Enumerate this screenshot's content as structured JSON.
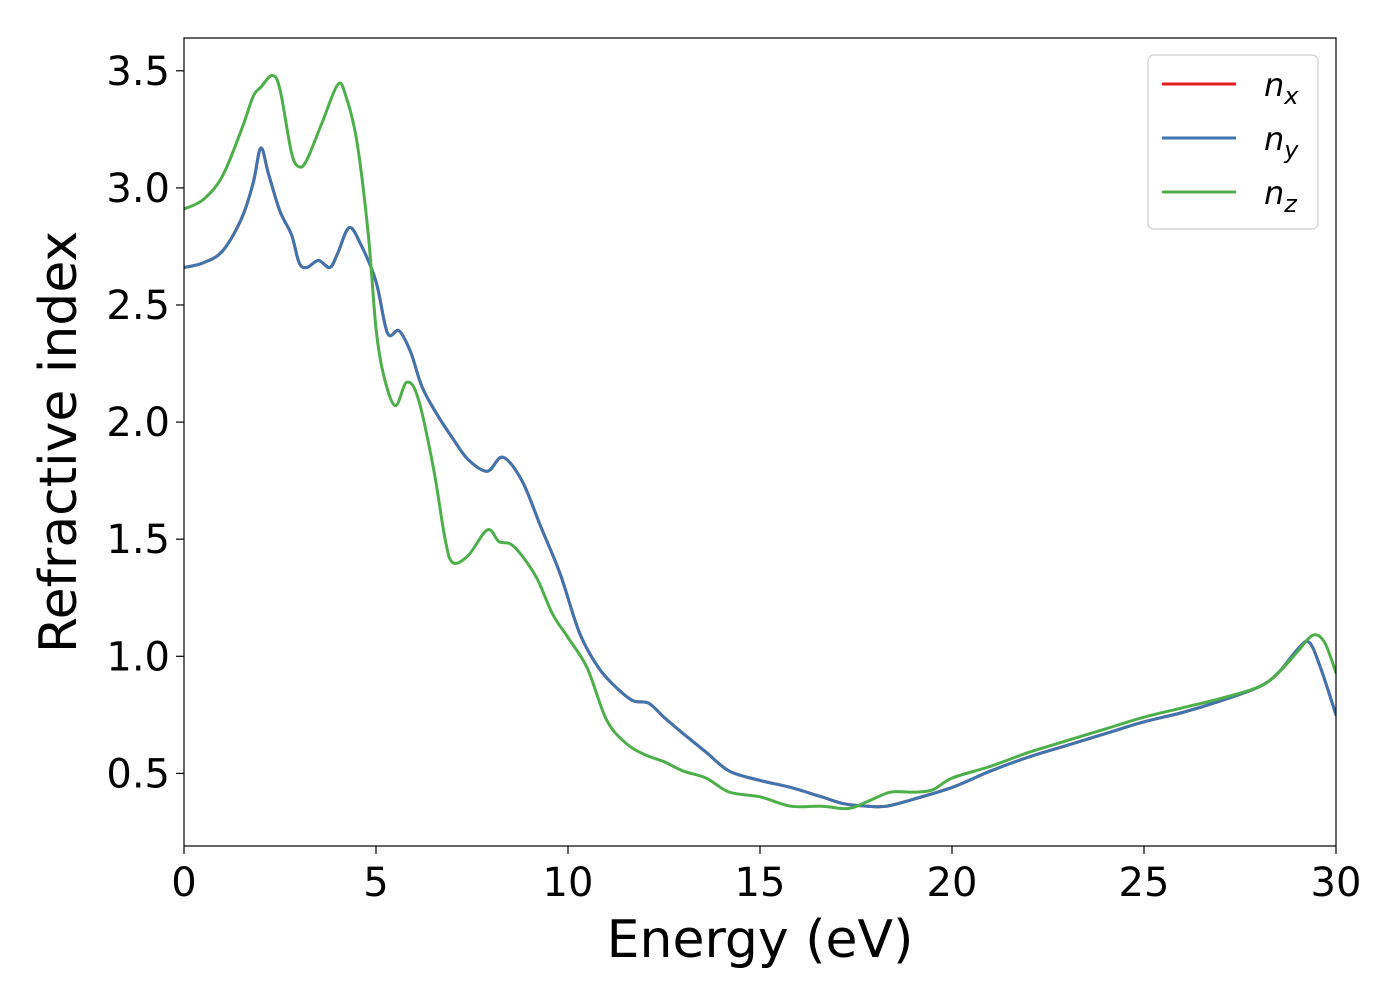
{
  "chart_data": {
    "type": "line",
    "xlabel": "Energy (eV)",
    "ylabel": "Refractive index",
    "xlim": [
      0,
      30
    ],
    "ylim": [
      0.19,
      3.64
    ],
    "xticks": [
      0,
      5,
      10,
      15,
      20,
      25,
      30
    ],
    "xtick_labels": [
      "0",
      "5",
      "10",
      "15",
      "20",
      "25",
      "30"
    ],
    "yticks": [
      0.5,
      1.0,
      1.5,
      2.0,
      2.5,
      3.0,
      3.5
    ],
    "ytick_labels": [
      "0.5",
      "1.0",
      "1.5",
      "2.0",
      "2.5",
      "3.0",
      "3.5"
    ],
    "grid": false,
    "legend_position": "top-right",
    "series": [
      {
        "name": "n",
        "subscript": "x",
        "color": "#e41a1c",
        "x": [
          0,
          0.5,
          1.0,
          1.5,
          1.8,
          2.0,
          2.2,
          2.5,
          2.8,
          3.0,
          3.2,
          3.5,
          3.8,
          4.0,
          4.3,
          4.6,
          5.0,
          5.3,
          5.6,
          5.9,
          6.2,
          6.6,
          7.0,
          7.4,
          7.9,
          8.3,
          8.8,
          9.3,
          9.8,
          10.3,
          10.8,
          11.3,
          11.7,
          12.1,
          12.5,
          13.0,
          13.6,
          14.2,
          15.0,
          15.8,
          16.6,
          17.2,
          17.8,
          18.3,
          19.0,
          20.0,
          21.0,
          22.0,
          23.0,
          24.0,
          25.0,
          26.0,
          27.0,
          28.0,
          28.5,
          29.0,
          29.3,
          29.6,
          30.0
        ],
        "y": [
          2.66,
          2.68,
          2.73,
          2.87,
          3.02,
          3.17,
          3.06,
          2.9,
          2.8,
          2.68,
          2.66,
          2.69,
          2.66,
          2.72,
          2.83,
          2.76,
          2.6,
          2.38,
          2.39,
          2.3,
          2.15,
          2.03,
          1.93,
          1.84,
          1.79,
          1.85,
          1.75,
          1.55,
          1.35,
          1.1,
          0.95,
          0.86,
          0.81,
          0.8,
          0.74,
          0.67,
          0.59,
          0.51,
          0.47,
          0.44,
          0.4,
          0.37,
          0.36,
          0.36,
          0.39,
          0.44,
          0.51,
          0.57,
          0.62,
          0.67,
          0.72,
          0.76,
          0.81,
          0.87,
          0.93,
          1.03,
          1.06,
          0.95,
          0.75
        ]
      },
      {
        "name": "n",
        "subscript": "y",
        "color": "#3f75ae",
        "x": [
          0,
          0.5,
          1.0,
          1.5,
          1.8,
          2.0,
          2.2,
          2.5,
          2.8,
          3.0,
          3.2,
          3.5,
          3.8,
          4.0,
          4.3,
          4.6,
          5.0,
          5.3,
          5.6,
          5.9,
          6.2,
          6.6,
          7.0,
          7.4,
          7.9,
          8.3,
          8.8,
          9.3,
          9.8,
          10.3,
          10.8,
          11.3,
          11.7,
          12.1,
          12.5,
          13.0,
          13.6,
          14.2,
          15.0,
          15.8,
          16.6,
          17.2,
          17.8,
          18.3,
          19.0,
          20.0,
          21.0,
          22.0,
          23.0,
          24.0,
          25.0,
          26.0,
          27.0,
          28.0,
          28.5,
          29.0,
          29.3,
          29.6,
          30.0
        ],
        "y": [
          2.66,
          2.68,
          2.73,
          2.87,
          3.02,
          3.17,
          3.06,
          2.9,
          2.8,
          2.68,
          2.66,
          2.69,
          2.66,
          2.72,
          2.83,
          2.76,
          2.6,
          2.38,
          2.39,
          2.3,
          2.15,
          2.03,
          1.93,
          1.84,
          1.79,
          1.85,
          1.75,
          1.55,
          1.35,
          1.1,
          0.95,
          0.86,
          0.81,
          0.8,
          0.74,
          0.67,
          0.59,
          0.51,
          0.47,
          0.44,
          0.4,
          0.37,
          0.36,
          0.36,
          0.39,
          0.44,
          0.51,
          0.57,
          0.62,
          0.67,
          0.72,
          0.76,
          0.81,
          0.87,
          0.93,
          1.03,
          1.06,
          0.95,
          0.75
        ]
      },
      {
        "name": "n",
        "subscript": "z",
        "color": "#4daf4a",
        "x": [
          0,
          0.5,
          1.0,
          1.5,
          1.8,
          2.0,
          2.3,
          2.5,
          2.8,
          3.0,
          3.2,
          3.6,
          4.0,
          4.2,
          4.5,
          4.8,
          5.0,
          5.2,
          5.5,
          5.8,
          6.1,
          6.5,
          6.8,
          7.0,
          7.4,
          7.9,
          8.2,
          8.5,
          8.8,
          9.2,
          9.6,
          10.0,
          10.5,
          11.0,
          11.5,
          12.0,
          12.5,
          13.0,
          13.6,
          14.2,
          15.0,
          15.8,
          16.6,
          17.3,
          17.8,
          18.4,
          19.0,
          19.5,
          20.0,
          21.0,
          22.0,
          23.0,
          24.0,
          25.0,
          26.0,
          27.0,
          28.0,
          28.5,
          29.0,
          29.4,
          29.7,
          30.0
        ],
        "y": [
          2.91,
          2.95,
          3.05,
          3.25,
          3.39,
          3.43,
          3.48,
          3.42,
          3.15,
          3.09,
          3.12,
          3.28,
          3.44,
          3.4,
          3.2,
          2.8,
          2.4,
          2.2,
          2.07,
          2.17,
          2.1,
          1.8,
          1.5,
          1.4,
          1.43,
          1.54,
          1.49,
          1.48,
          1.43,
          1.33,
          1.18,
          1.08,
          0.95,
          0.73,
          0.63,
          0.58,
          0.55,
          0.51,
          0.48,
          0.42,
          0.4,
          0.36,
          0.36,
          0.35,
          0.38,
          0.42,
          0.42,
          0.43,
          0.48,
          0.53,
          0.59,
          0.64,
          0.69,
          0.74,
          0.78,
          0.82,
          0.87,
          0.93,
          1.02,
          1.09,
          1.06,
          0.93
        ]
      }
    ]
  }
}
